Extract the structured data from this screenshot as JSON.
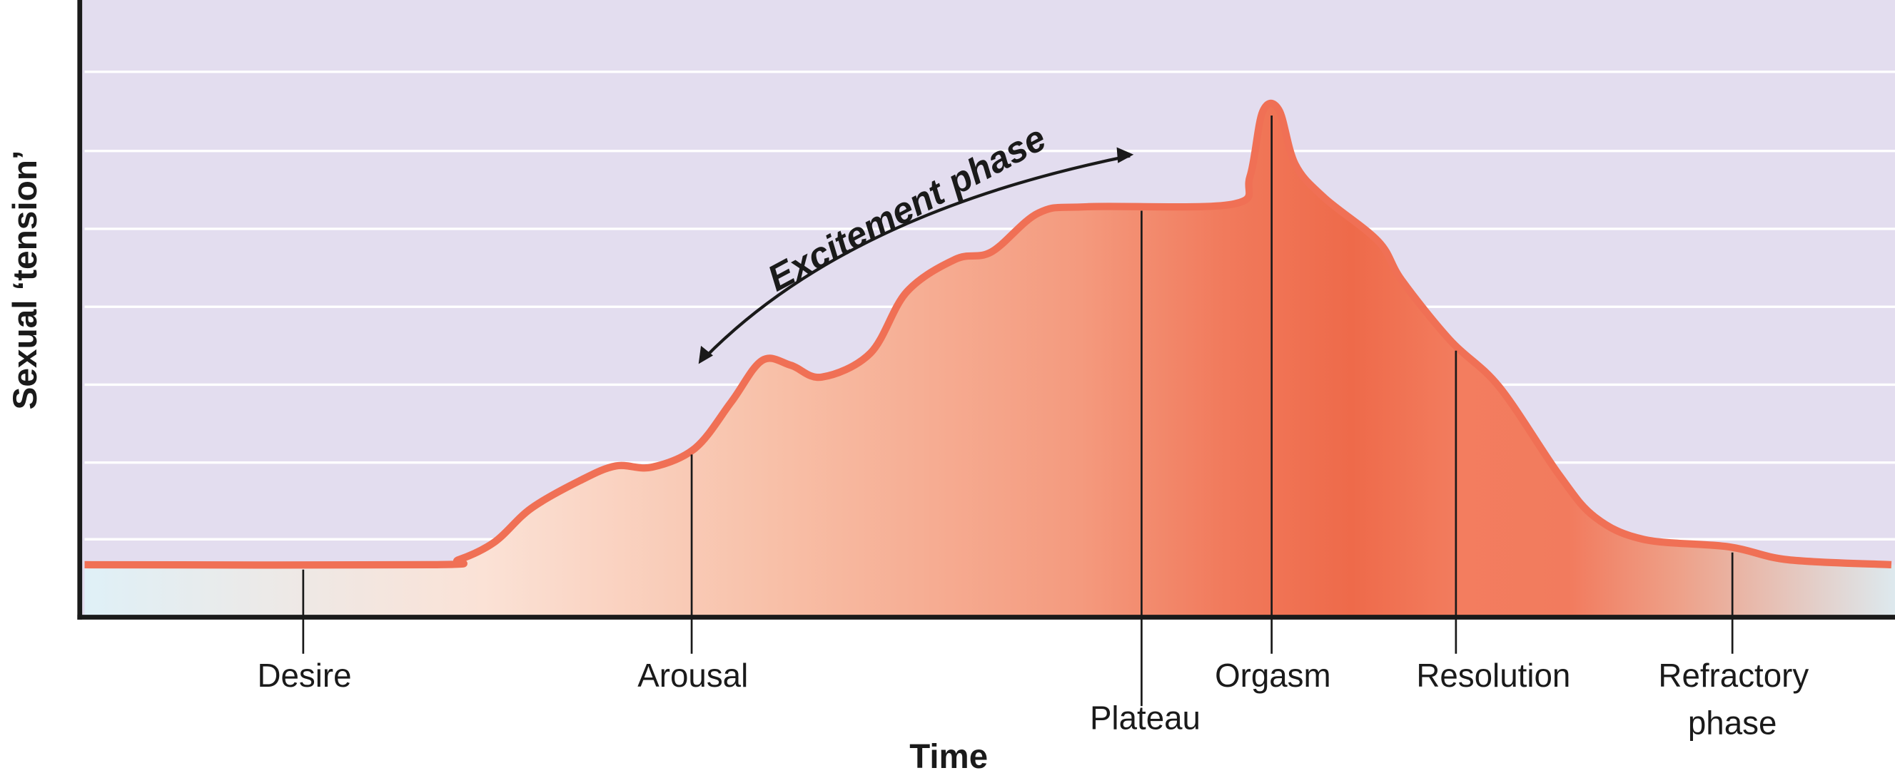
{
  "chart_data": {
    "type": "area",
    "title": "",
    "xlabel": "Time",
    "ylabel": "Sexual ‘tension’",
    "xlim": [
      0,
      100
    ],
    "ylim": [
      0,
      100
    ],
    "grid": true,
    "x": [
      0,
      19.1,
      20.7,
      22.7,
      24.7,
      27.4,
      29.4,
      31.4,
      33.8,
      35.8,
      37.5,
      39.1,
      40.8,
      43.5,
      45.5,
      48.2,
      50.2,
      52.8,
      55.5,
      63.5,
      64.5,
      65.2,
      66.1,
      67.0,
      68.6,
      71.6,
      72.9,
      75.6,
      78.3,
      81.6,
      83.6,
      86.3,
      91.0,
      94.3,
      100
    ],
    "y": [
      8.5,
      8.5,
      9.3,
      12.2,
      17.6,
      22.1,
      24.5,
      24.3,
      27.4,
      34.9,
      41.6,
      40.8,
      38.9,
      42.8,
      52.7,
      58.0,
      59.2,
      65.5,
      66.5,
      66.9,
      71.4,
      81.9,
      82.2,
      73.4,
      68.0,
      60.9,
      54.6,
      44.8,
      37.3,
      23.1,
      16.2,
      12.6,
      11.4,
      9.3,
      8.5
    ],
    "phases": [
      {
        "label": "Desire",
        "x": 12.1
      },
      {
        "label": "Arousal",
        "x": 33.6
      },
      {
        "label": "Plateau",
        "x": 58.5
      },
      {
        "label": "Orgasm",
        "x": 65.7
      },
      {
        "label": "Resolution",
        "x": 75.9
      },
      {
        "label": "Refractory",
        "label2": "phase",
        "x": 91.2
      }
    ],
    "annotation": "Excitement phase",
    "colors": {
      "background": "#e3ddef",
      "grid": "#ffffff",
      "curve": "#f07055",
      "fill_peak": "#ef6a4a",
      "fill_edge": "#dff0f7",
      "axis": "#1a1a1a"
    }
  }
}
